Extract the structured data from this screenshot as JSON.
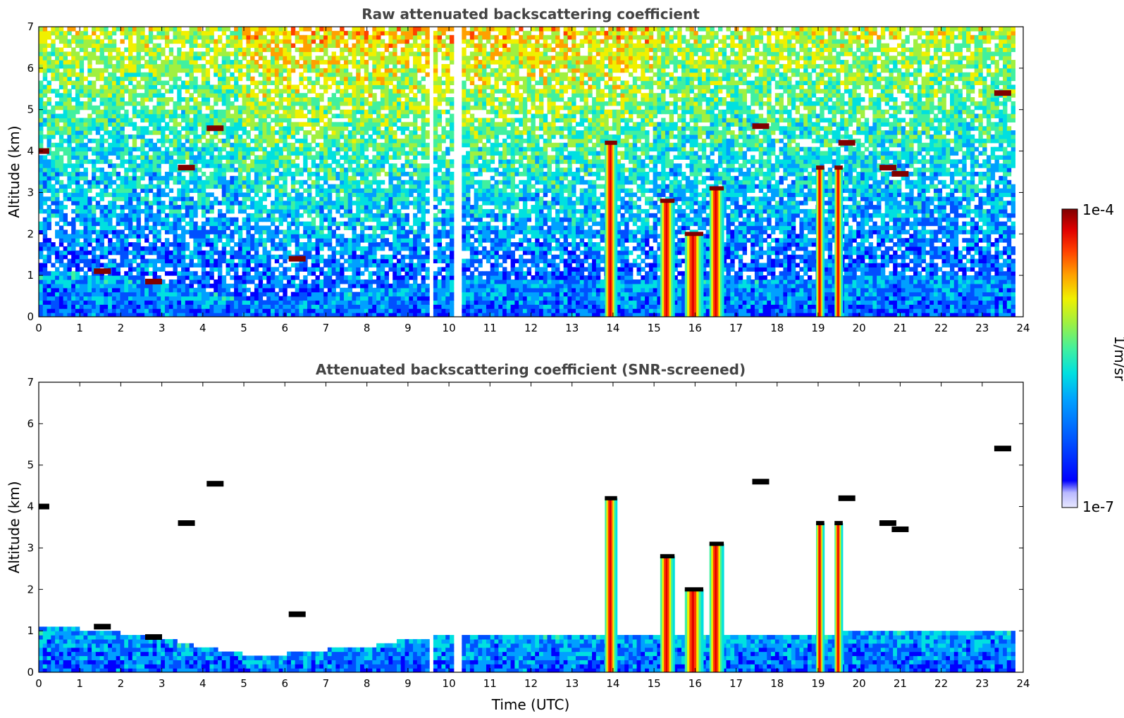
{
  "chart_data": [
    {
      "type": "heatmap",
      "title": "Raw attenuated backscattering coefficient",
      "xlabel": "",
      "ylabel": "Altitude (km)",
      "xlim": [
        0,
        24
      ],
      "ylim": [
        0,
        7
      ],
      "x_ticks": [
        0,
        1,
        2,
        3,
        4,
        5,
        6,
        7,
        8,
        9,
        10,
        11,
        12,
        13,
        14,
        15,
        16,
        17,
        18,
        19,
        20,
        21,
        22,
        23,
        24
      ],
      "y_ticks": [
        0,
        1,
        2,
        3,
        4,
        5,
        6,
        7
      ],
      "data_gaps_hours": [
        [
          9.5,
          9.65
        ],
        [
          10.15,
          10.3
        ]
      ],
      "data_end_hour": 23.8,
      "boundary_layer_top_km": [
        [
          0,
          1.1
        ],
        [
          1,
          1.05
        ],
        [
          2,
          0.95
        ],
        [
          3,
          0.85
        ],
        [
          4,
          0.6
        ],
        [
          5,
          0.45
        ],
        [
          6,
          0.45
        ],
        [
          7,
          0.55
        ],
        [
          8,
          0.6
        ],
        [
          9,
          0.8
        ],
        [
          10,
          0.9
        ],
        [
          11,
          0.9
        ],
        [
          12,
          0.9
        ],
        [
          13,
          0.9
        ],
        [
          14,
          0.9
        ],
        [
          15,
          0.9
        ],
        [
          16,
          0.9
        ],
        [
          17,
          0.9
        ],
        [
          18,
          0.9
        ],
        [
          19,
          0.9
        ],
        [
          20,
          1.0
        ],
        [
          21,
          1.0
        ],
        [
          22,
          1.0
        ],
        [
          23,
          1.0
        ],
        [
          23.8,
          1.0
        ]
      ],
      "cloud_columns": [
        {
          "x0": 13.8,
          "x1": 14.1,
          "top_km": 4.2
        },
        {
          "x0": 15.15,
          "x1": 15.5,
          "top_km": 2.8
        },
        {
          "x0": 15.75,
          "x1": 16.2,
          "top_km": 2.0
        },
        {
          "x0": 16.35,
          "x1": 16.7,
          "top_km": 3.1
        },
        {
          "x0": 18.95,
          "x1": 19.15,
          "top_km": 3.6
        },
        {
          "x0": 19.4,
          "x1": 19.6,
          "top_km": 3.6
        }
      ],
      "cloud_patches": [
        {
          "x": 0.05,
          "y": 4.0
        },
        {
          "x": 1.55,
          "y": 1.1
        },
        {
          "x": 2.8,
          "y": 0.85
        },
        {
          "x": 3.6,
          "y": 3.6
        },
        {
          "x": 4.3,
          "y": 4.55
        },
        {
          "x": 6.3,
          "y": 1.4
        },
        {
          "x": 17.6,
          "y": 4.6
        },
        {
          "x": 19.7,
          "y": 4.2
        },
        {
          "x": 20.7,
          "y": 3.6
        },
        {
          "x": 21.0,
          "y": 3.45
        },
        {
          "x": 23.5,
          "y": 5.4
        }
      ]
    },
    {
      "type": "heatmap",
      "title": "Attenuated backscattering coefficient (SNR-screened)",
      "xlabel": "Time (UTC)",
      "ylabel": "Altitude (km)",
      "xlim": [
        0,
        24
      ],
      "ylim": [
        0,
        7
      ],
      "x_ticks": [
        0,
        1,
        2,
        3,
        4,
        5,
        6,
        7,
        8,
        9,
        10,
        11,
        12,
        13,
        14,
        15,
        16,
        17,
        18,
        19,
        20,
        21,
        22,
        23,
        24
      ],
      "y_ticks": [
        0,
        1,
        2,
        3,
        4,
        5,
        6,
        7
      ],
      "screened": true
    }
  ],
  "colorbar": {
    "min_label": "1e-7",
    "max_label": "1e-4",
    "unit": "1/m/sr",
    "scale": "log",
    "colors": [
      "#e8e8ff",
      "#b8b8ff",
      "#0000ff",
      "#0050ff",
      "#00a0ff",
      "#00e0e0",
      "#40f0a0",
      "#a0f040",
      "#f0f000",
      "#ffa000",
      "#ff4000",
      "#e00000",
      "#800000"
    ]
  }
}
